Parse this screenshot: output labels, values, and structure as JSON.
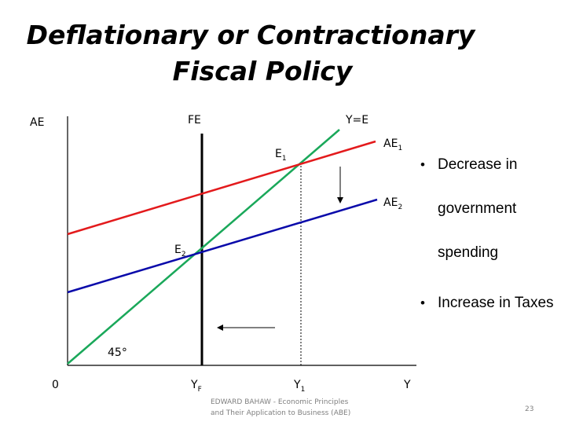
{
  "title": {
    "line1": "Deflationary or Contractionary",
    "line2": "Fiscal Policy"
  },
  "diagram": {
    "y_axis_label": "AE",
    "x_axis_label": "Y",
    "origin_label": "0",
    "fe_label": "FE",
    "ye_label": "Y=E",
    "ae1_label": "AE",
    "ae1_sub": "1",
    "ae2_label": "AE",
    "ae2_sub": "2",
    "e1_label": "E",
    "e1_sub": "1",
    "e2_label": "E",
    "e2_sub": "2",
    "angle_label": "45°",
    "yf_label": "Y",
    "yf_sub": "F",
    "y1_label": "Y",
    "y1_sub": "1",
    "colors": {
      "ae1": "#e31a1c",
      "ae2": "#0a0aaa",
      "ye": "#1aa85a",
      "axes": "#000000"
    }
  },
  "bullets": [
    {
      "text": "Decrease in government spending"
    },
    {
      "text": "Increase in Taxes"
    }
  ],
  "footer": {
    "line1": "EDWARD BAHAW - Economic Principles",
    "line2": "and Their Application to Business (ABE)",
    "page_number": "23"
  }
}
